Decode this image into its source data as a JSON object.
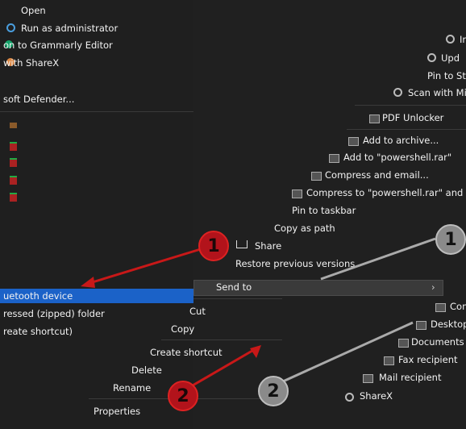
{
  "left_menu": {
    "items": [
      {
        "label": "Open"
      },
      {
        "label": "Run as administrator"
      },
      {
        "label": "on to Grammarly Editor"
      },
      {
        "label": "with ShareX"
      },
      {
        "label": "soft Defender..."
      }
    ]
  },
  "send_to_left": {
    "items": [
      {
        "label": "uetooth device"
      },
      {
        "label": "ressed (zipped) folder"
      },
      {
        "label": "reate shortcut)"
      }
    ]
  },
  "context_menu": {
    "items": [
      {
        "label": "In"
      },
      {
        "label": "Upd"
      },
      {
        "label": "Pin to Sta"
      },
      {
        "label": "Scan with Mic"
      },
      {
        "label": "PDF Unlocker"
      },
      {
        "label": "Add to archive..."
      },
      {
        "label": "Add to \"powershell.rar\""
      },
      {
        "label": "Compress and email..."
      },
      {
        "label": "Compress to \"powershell.rar\" and ema"
      },
      {
        "label": "Pin to taskbar"
      },
      {
        "label": "Copy as path"
      },
      {
        "label": "Share"
      },
      {
        "label": "Restore previous versions"
      },
      {
        "label": "Send to"
      },
      {
        "label": "Cut"
      },
      {
        "label": "Copy"
      },
      {
        "label": "Create shortcut"
      },
      {
        "label": "Delete"
      },
      {
        "label": "Rename"
      },
      {
        "label": "Properties"
      }
    ]
  },
  "send_to_right": {
    "items": [
      {
        "label": "Com"
      },
      {
        "label": "Desktop"
      },
      {
        "label": "Documents"
      },
      {
        "label": "Fax recipient"
      },
      {
        "label": "Mail recipient"
      },
      {
        "label": "ShareX"
      }
    ]
  },
  "callouts": {
    "one_left": "1",
    "two_left": "2",
    "one_right": "1",
    "two_right": "2"
  },
  "colors": {
    "highlight": "#1b62c8",
    "callout_red": "#b2131b",
    "callout_grey": "#8a8a8a",
    "menu_bg": "#262626"
  }
}
